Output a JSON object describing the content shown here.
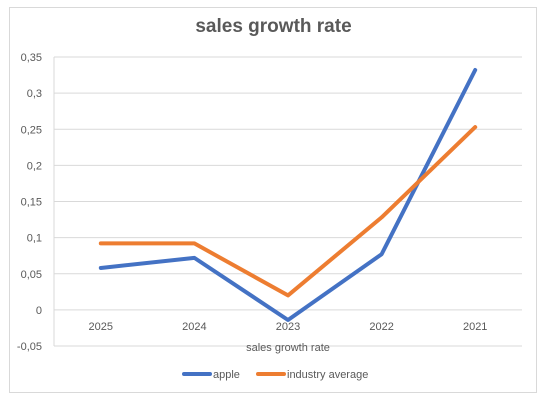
{
  "chart_data": {
    "type": "line",
    "title": "sales growth rate",
    "xlabel": "sales growth rate",
    "ylabel": "",
    "categories": [
      "2025",
      "2024",
      "2023",
      "2022",
      "2021"
    ],
    "series": [
      {
        "name": "apple",
        "color": "#4472c4",
        "values": [
          0.058,
          0.072,
          -0.014,
          0.077,
          0.332
        ]
      },
      {
        "name": "industry average",
        "color": "#ed7d31",
        "values": [
          0.092,
          0.092,
          0.02,
          0.128,
          0.253
        ]
      }
    ],
    "ylim": [
      -0.05,
      0.35
    ],
    "yticks": [
      -0.05,
      0,
      0.05,
      0.1,
      0.15,
      0.2,
      0.25,
      0.3,
      0.35
    ],
    "ytick_labels": [
      "-0,05",
      "0",
      "0,05",
      "0,1",
      "0,15",
      "0,2",
      "0,25",
      "0,3",
      "0,35"
    ],
    "grid": true,
    "legend_position": "bottom"
  }
}
